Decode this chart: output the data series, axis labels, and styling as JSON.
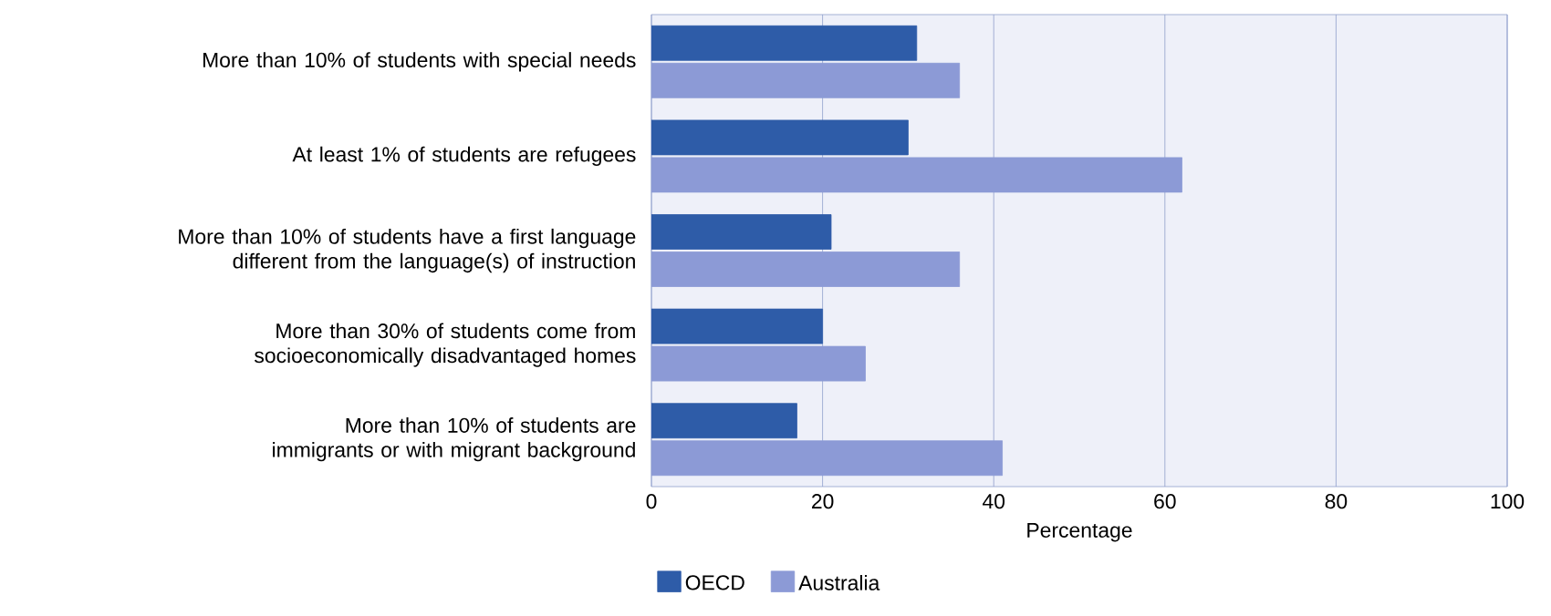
{
  "chart_data": {
    "type": "bar",
    "orientation": "horizontal",
    "xlabel": "Percentage",
    "categories": [
      "More than 10% of students with special needs",
      "At least 1% of students are refugees",
      "More than 10% of students have a first language different from the language(s) of instruction",
      "More than 30% of students come from socioeconomically disadvantaged homes",
      "More than 10% of students are immigrants or with migrant background"
    ],
    "series": [
      {
        "name": "OECD",
        "color": "#2e5ca8",
        "values": [
          31,
          30,
          21,
          20,
          17
        ]
      },
      {
        "name": "Australia",
        "color": "#8c9ad6",
        "values": [
          36,
          62,
          36,
          25,
          41
        ]
      }
    ],
    "xlim": [
      0,
      100
    ],
    "xticks": [
      0,
      20,
      40,
      60,
      80,
      100
    ],
    "grid": "x",
    "legend": "bottom"
  }
}
